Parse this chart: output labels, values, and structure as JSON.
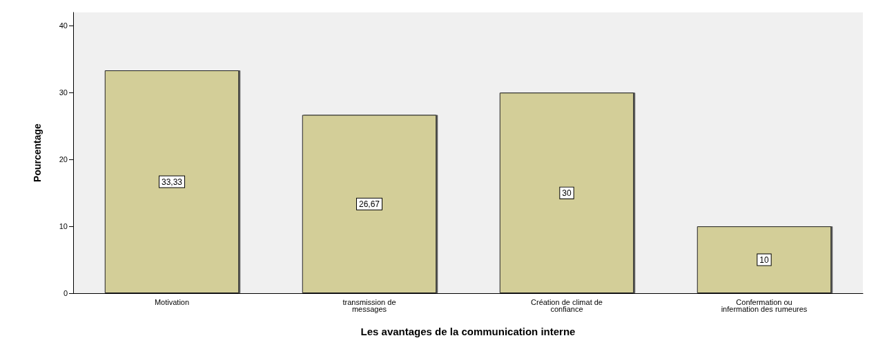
{
  "chart_data": {
    "type": "bar",
    "xlabel": "Les avantages de la communication interne",
    "ylabel": "Pourcentage",
    "categories": [
      "Motivation",
      "transmission de\nmessages",
      "Création de climat de\nconfiance",
      "Confermation ou\ninfermation des rumeures"
    ],
    "values": [
      33.33,
      26.67,
      30,
      10
    ],
    "value_labels": [
      "33,33",
      "26,67",
      "30",
      "10"
    ],
    "color": "#d3ce98",
    "ylim": [
      0,
      42
    ],
    "yticks": [
      0,
      10,
      20,
      30,
      40
    ],
    "grid": false
  }
}
